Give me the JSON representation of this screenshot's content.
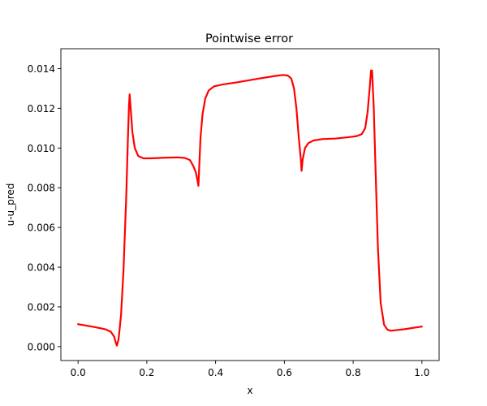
{
  "chart_data": {
    "type": "line",
    "title": "Pointwise error",
    "xlabel": "x",
    "ylabel": "u-u_pred",
    "xlim": [
      -0.05,
      1.05
    ],
    "ylim": [
      -0.0007,
      0.015
    ],
    "xticks": [
      0.0,
      0.2,
      0.4,
      0.6,
      0.8,
      1.0
    ],
    "xtick_labels": [
      "0.0",
      "0.2",
      "0.4",
      "0.6",
      "0.8",
      "1.0"
    ],
    "yticks": [
      0.0,
      0.002,
      0.004,
      0.006,
      0.008,
      0.01,
      0.012,
      0.014
    ],
    "ytick_labels": [
      "0.000",
      "0.002",
      "0.004",
      "0.006",
      "0.008",
      "0.010",
      "0.012",
      "0.014"
    ],
    "grid": false,
    "series": [
      {
        "color": "#ff0000",
        "x": [
          0.0,
          0.02,
          0.05,
          0.08,
          0.095,
          0.105,
          0.11,
          0.113,
          0.118,
          0.125,
          0.132,
          0.14,
          0.145,
          0.148,
          0.15,
          0.153,
          0.158,
          0.165,
          0.175,
          0.19,
          0.21,
          0.25,
          0.29,
          0.31,
          0.325,
          0.335,
          0.342,
          0.347,
          0.35,
          0.352,
          0.356,
          0.362,
          0.37,
          0.38,
          0.395,
          0.42,
          0.46,
          0.52,
          0.57,
          0.595,
          0.61,
          0.62,
          0.628,
          0.635,
          0.642,
          0.648,
          0.65,
          0.653,
          0.66,
          0.67,
          0.685,
          0.71,
          0.75,
          0.79,
          0.81,
          0.825,
          0.835,
          0.842,
          0.848,
          0.852,
          0.855,
          0.86,
          0.865,
          0.872,
          0.88,
          0.89,
          0.9,
          0.91,
          0.925,
          0.95,
          0.98,
          1.0
        ],
        "y": [
          0.00113,
          0.00107,
          0.00098,
          0.00087,
          0.00075,
          0.0005,
          0.00018,
          5e-05,
          0.0004,
          0.0016,
          0.0038,
          0.0075,
          0.0105,
          0.0121,
          0.0127,
          0.012,
          0.0108,
          0.01,
          0.0096,
          0.00948,
          0.00948,
          0.00951,
          0.00953,
          0.0095,
          0.0094,
          0.0091,
          0.0088,
          0.0084,
          0.0081,
          0.0089,
          0.0105,
          0.0117,
          0.0125,
          0.0129,
          0.0131,
          0.0132,
          0.0133,
          0.01348,
          0.01362,
          0.01368,
          0.01365,
          0.0135,
          0.013,
          0.012,
          0.0105,
          0.0094,
          0.00885,
          0.0094,
          0.01,
          0.01025,
          0.01038,
          0.01045,
          0.01048,
          0.01055,
          0.0106,
          0.0107,
          0.011,
          0.0118,
          0.013,
          0.0139,
          0.0139,
          0.012,
          0.009,
          0.005,
          0.0022,
          0.0011,
          0.00085,
          0.0008,
          0.00083,
          0.00088,
          0.00096,
          0.00101
        ]
      }
    ]
  }
}
